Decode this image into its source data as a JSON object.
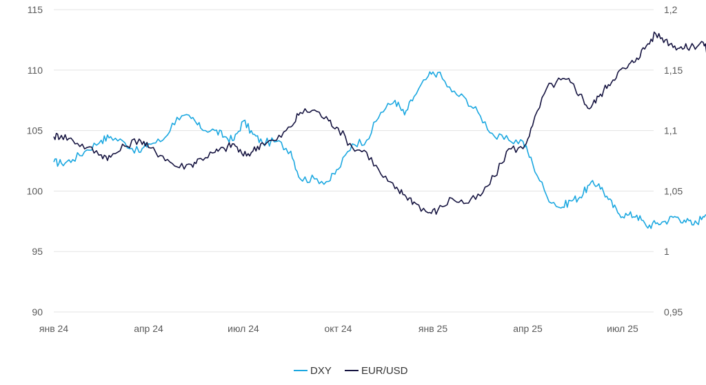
{
  "chart_data": {
    "type": "line",
    "title": "",
    "x_categories": [
      "янв 24",
      "апр 24",
      "июл 24",
      "окт 24",
      "янв 25",
      "апр 25",
      "июл 25"
    ],
    "y_left": {
      "min": 90,
      "max": 115,
      "ticks": [
        90,
        95,
        100,
        105,
        110,
        115
      ],
      "labels": [
        "90",
        "95",
        "100",
        "105",
        "110",
        "115"
      ]
    },
    "y_right": {
      "min": 0.95,
      "max": 1.2,
      "ticks": [
        0.95,
        1.0,
        1.05,
        1.1,
        1.15,
        1.2
      ],
      "labels": [
        "0,95",
        "1",
        "1,05",
        "1,1",
        "1,15",
        "1,2"
      ]
    },
    "grid": true,
    "legend_position": "bottom-center",
    "colors": {
      "dxy": "#1aa7e0",
      "eurusd": "#14123f"
    },
    "series": [
      {
        "name": "DXY",
        "axis": "left",
        "x": [
          0,
          0.08,
          0.2,
          0.35,
          0.5,
          0.6,
          0.75,
          0.9,
          1.0,
          1.15,
          1.3,
          1.45,
          1.55,
          1.7,
          1.8,
          1.9,
          2.0,
          2.1,
          2.2,
          2.35,
          2.5,
          2.6,
          2.75,
          2.9,
          3.0,
          3.15,
          3.3,
          3.45,
          3.6,
          3.7,
          3.8,
          3.95,
          4.05,
          4.2,
          4.35,
          4.5,
          4.65,
          4.8,
          4.95,
          5.05,
          5.2,
          5.35,
          5.45,
          5.55,
          5.65,
          5.75,
          5.85,
          5.95,
          6.05,
          6.15,
          6.25,
          6.35,
          6.45,
          6.55,
          6.65,
          6.75,
          6.85,
          6.92
        ],
        "values": [
          102.4,
          102.3,
          102.6,
          103.4,
          104.2,
          104.5,
          104.0,
          103.2,
          103.9,
          104.2,
          106.1,
          106.0,
          105.2,
          105.0,
          104.5,
          104.2,
          105.8,
          104.7,
          104.0,
          104.1,
          103.3,
          101.0,
          101.0,
          100.8,
          101.8,
          103.9,
          104.2,
          106.5,
          107.5,
          106.3,
          107.8,
          109.5,
          109.8,
          108.2,
          107.6,
          106.2,
          104.5,
          104.2,
          104.1,
          102.3,
          99.6,
          98.6,
          99.2,
          99.5,
          100.5,
          100.6,
          99.3,
          98.2,
          98.0,
          98.0,
          97.1,
          97.3,
          97.5,
          97.9,
          97.6,
          97.2,
          97.9,
          98.9
        ]
      },
      {
        "name": "EUR/USD",
        "axis": "right",
        "x": [
          0,
          0.08,
          0.2,
          0.35,
          0.5,
          0.6,
          0.75,
          0.9,
          1.0,
          1.15,
          1.3,
          1.45,
          1.55,
          1.7,
          1.8,
          1.9,
          2.0,
          2.1,
          2.2,
          2.35,
          2.5,
          2.6,
          2.75,
          2.9,
          3.0,
          3.15,
          3.3,
          3.45,
          3.6,
          3.7,
          3.8,
          3.95,
          4.05,
          4.2,
          4.35,
          4.5,
          4.65,
          4.8,
          4.95,
          5.05,
          5.2,
          5.35,
          5.45,
          5.55,
          5.65,
          5.75,
          5.85,
          5.95,
          6.05,
          6.15,
          6.25,
          6.35,
          6.45,
          6.55,
          6.65,
          6.75,
          6.85,
          6.92
        ],
        "values": [
          1.095,
          1.096,
          1.092,
          1.086,
          1.08,
          1.078,
          1.087,
          1.093,
          1.086,
          1.079,
          1.07,
          1.072,
          1.077,
          1.082,
          1.085,
          1.089,
          1.079,
          1.083,
          1.09,
          1.092,
          1.103,
          1.115,
          1.117,
          1.108,
          1.102,
          1.086,
          1.082,
          1.064,
          1.052,
          1.047,
          1.041,
          1.032,
          1.034,
          1.044,
          1.04,
          1.046,
          1.062,
          1.085,
          1.085,
          1.104,
          1.135,
          1.142,
          1.14,
          1.13,
          1.118,
          1.128,
          1.138,
          1.148,
          1.152,
          1.16,
          1.17,
          1.18,
          1.175,
          1.17,
          1.168,
          1.17,
          1.173,
          1.16
        ]
      }
    ]
  }
}
